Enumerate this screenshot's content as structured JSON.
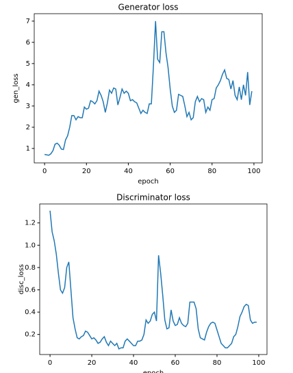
{
  "chart_data": [
    {
      "type": "line",
      "title": "Generator loss",
      "xlabel": "epoch",
      "ylabel": "gen_loss",
      "x": [
        0,
        1,
        2,
        3,
        4,
        5,
        6,
        7,
        8,
        9,
        10,
        11,
        12,
        13,
        14,
        15,
        16,
        17,
        18,
        19,
        20,
        21,
        22,
        23,
        24,
        25,
        26,
        27,
        28,
        29,
        30,
        31,
        32,
        33,
        34,
        35,
        36,
        37,
        38,
        39,
        40,
        41,
        42,
        43,
        44,
        45,
        46,
        47,
        48,
        49,
        50,
        51,
        52,
        53,
        54,
        55,
        56,
        57,
        58,
        59,
        60,
        61,
        62,
        63,
        64,
        65,
        66,
        67,
        68,
        69,
        70,
        71,
        72,
        73,
        74,
        75,
        76,
        77,
        78,
        79,
        80,
        81,
        82,
        83,
        84,
        85,
        86,
        87,
        88,
        89,
        90,
        91,
        92,
        93,
        94,
        95,
        96,
        97,
        98,
        99
      ],
      "series": [
        {
          "name": "gen_loss",
          "color": "#1f77b4",
          "values": [
            0.72,
            0.7,
            0.68,
            0.75,
            0.9,
            1.2,
            1.25,
            1.15,
            0.97,
            0.95,
            1.4,
            1.6,
            2.0,
            2.55,
            2.55,
            2.35,
            2.5,
            2.45,
            2.45,
            2.95,
            2.85,
            2.9,
            3.25,
            3.2,
            3.1,
            3.25,
            3.7,
            3.5,
            3.2,
            2.7,
            3.15,
            3.75,
            3.6,
            3.85,
            3.8,
            3.05,
            3.4,
            3.8,
            3.6,
            3.7,
            3.6,
            3.25,
            3.3,
            3.2,
            3.15,
            2.9,
            2.65,
            2.8,
            2.7,
            2.65,
            3.1,
            3.1,
            4.9,
            7.0,
            5.2,
            5.05,
            6.5,
            6.5,
            5.5,
            4.8,
            3.8,
            3.0,
            2.7,
            2.8,
            3.55,
            3.5,
            3.45,
            3.0,
            2.5,
            2.7,
            2.35,
            2.45,
            3.2,
            3.45,
            3.2,
            3.35,
            3.3,
            2.7,
            2.95,
            2.8,
            3.3,
            3.35,
            3.85,
            4.0,
            4.2,
            4.5,
            4.7,
            4.3,
            4.25,
            3.8,
            4.2,
            3.5,
            3.3,
            3.9,
            3.3,
            4.0,
            3.5,
            4.6,
            3.05,
            3.7
          ]
        }
      ],
      "xlim": [
        -4.95,
        103.95
      ],
      "xticks": [
        0,
        20,
        40,
        60,
        80,
        100
      ],
      "ylim": [
        0.32,
        7.35
      ],
      "yticks": [
        1,
        2,
        3,
        4,
        5,
        6,
        7
      ]
    },
    {
      "type": "line",
      "title": "Discriminator loss",
      "xlabel": "epoch",
      "ylabel": "disc_loss",
      "x": [
        0,
        1,
        2,
        3,
        4,
        5,
        6,
        7,
        8,
        9,
        10,
        11,
        12,
        13,
        14,
        15,
        16,
        17,
        18,
        19,
        20,
        21,
        22,
        23,
        24,
        25,
        26,
        27,
        28,
        29,
        30,
        31,
        32,
        33,
        34,
        35,
        36,
        37,
        38,
        39,
        40,
        41,
        42,
        43,
        44,
        45,
        46,
        47,
        48,
        49,
        50,
        51,
        52,
        53,
        54,
        55,
        56,
        57,
        58,
        59,
        60,
        61,
        62,
        63,
        64,
        65,
        66,
        67,
        68,
        69,
        70,
        71,
        72,
        73,
        74,
        75,
        76,
        77,
        78,
        79,
        80,
        81,
        82,
        83,
        84,
        85,
        86,
        87,
        88,
        89,
        90,
        91,
        92,
        93,
        94,
        95,
        96,
        97,
        98,
        99
      ],
      "series": [
        {
          "name": "disc_loss",
          "color": "#1f77b4",
          "values": [
            1.31,
            1.12,
            1.04,
            0.92,
            0.75,
            0.6,
            0.57,
            0.62,
            0.8,
            0.85,
            0.6,
            0.35,
            0.25,
            0.17,
            0.16,
            0.18,
            0.19,
            0.23,
            0.22,
            0.19,
            0.16,
            0.17,
            0.15,
            0.12,
            0.13,
            0.16,
            0.18,
            0.13,
            0.1,
            0.14,
            0.12,
            0.1,
            0.12,
            0.07,
            0.08,
            0.08,
            0.14,
            0.16,
            0.14,
            0.12,
            0.1,
            0.1,
            0.14,
            0.14,
            0.15,
            0.2,
            0.33,
            0.3,
            0.32,
            0.38,
            0.4,
            0.32,
            0.91,
            0.75,
            0.55,
            0.33,
            0.25,
            0.26,
            0.42,
            0.32,
            0.28,
            0.29,
            0.35,
            0.3,
            0.28,
            0.27,
            0.3,
            0.49,
            0.49,
            0.49,
            0.43,
            0.25,
            0.17,
            0.16,
            0.15,
            0.22,
            0.27,
            0.3,
            0.31,
            0.3,
            0.24,
            0.18,
            0.12,
            0.1,
            0.08,
            0.08,
            0.1,
            0.12,
            0.18,
            0.2,
            0.27,
            0.36,
            0.4,
            0.45,
            0.47,
            0.46,
            0.33,
            0.3,
            0.31,
            0.31
          ]
        }
      ],
      "xlim": [
        -4.95,
        103.95
      ],
      "xticks": [
        0,
        20,
        40,
        60,
        80,
        100
      ],
      "ylim": [
        0.02,
        1.37
      ],
      "yticks": [
        0.2,
        0.4,
        0.6,
        0.8,
        {
          "value": 1,
          "label": "1.0"
        },
        1.2
      ]
    }
  ]
}
